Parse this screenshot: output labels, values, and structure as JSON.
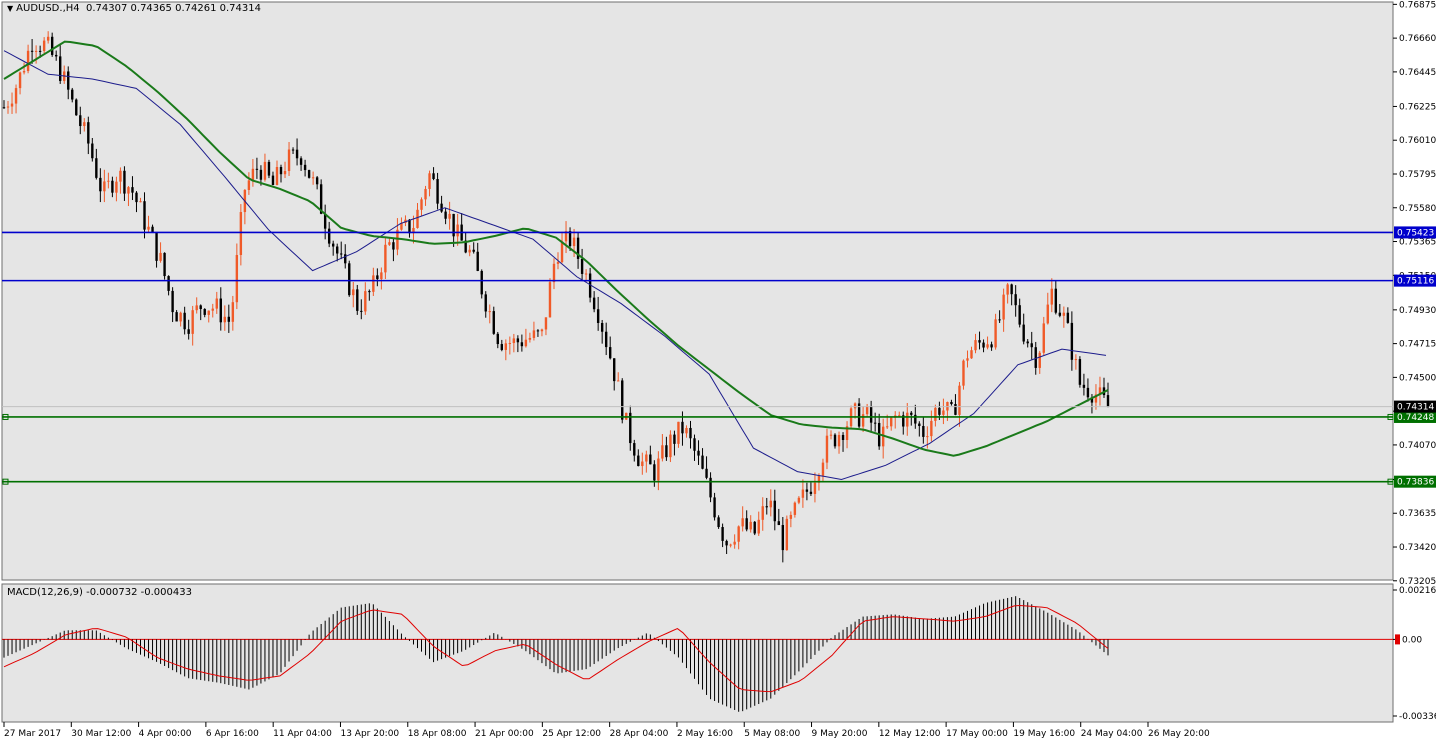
{
  "header": {
    "symbol": "AUDUSD.,H4",
    "open": "0.74307",
    "high": "0.74365",
    "low": "0.74261",
    "close": "0.74314"
  },
  "macd_header": {
    "name": "MACD(12,26,9)",
    "main": "-0.000732",
    "signal": "-0.000433"
  },
  "colors": {
    "background": "#ffffff",
    "plot_bg": "#e5e5e5",
    "bull_candle": "#f05a28",
    "bear_candle": "#000000",
    "ma_slow": "#1a7a1a",
    "ma_fast": "#1c1c8c",
    "resistance_line": "#0000cc",
    "support_line": "#007000",
    "macd_hist": "#000000",
    "macd_signal": "#e00000"
  },
  "chart_data": {
    "type": "candlestick",
    "instrument": "AUDUSD",
    "timeframe": "H4",
    "price_range": [
      0.7321,
      0.7689
    ],
    "price_ticks": [
      "0.76875",
      "0.76660",
      "0.76445",
      "0.76225",
      "0.76010",
      "0.75795",
      "0.75580",
      "0.75365",
      "0.75150",
      "0.74930",
      "0.74715",
      "0.74500",
      "0.74285",
      "0.74070",
      "0.73850",
      "0.73635",
      "0.73420",
      "0.73205"
    ],
    "time_labels": [
      "27 Mar 2017",
      "30 Mar 12:00",
      "4 Apr 00:00",
      "6 Apr 16:00",
      "11 Apr 04:00",
      "13 Apr 20:00",
      "18 Apr 08:00",
      "21 Apr 00:00",
      "25 Apr 12:00",
      "28 Apr 04:00",
      "2 May 16:00",
      "5 May 08:00",
      "9 May 20:00",
      "12 May 12:00",
      "17 May 00:00",
      "19 May 16:00",
      "24 May 04:00",
      "26 May 20:00"
    ],
    "horizontal_lines": [
      {
        "price": 0.75423,
        "label": "0.75423",
        "color": "#0000cc",
        "type": "resistance"
      },
      {
        "price": 0.75116,
        "label": "0.75116",
        "color": "#0000cc",
        "type": "resistance"
      },
      {
        "price": 0.74248,
        "label": "0.74248",
        "color": "#007000",
        "type": "support"
      },
      {
        "price": 0.73836,
        "label": "0.73836",
        "color": "#007000",
        "type": "support"
      }
    ],
    "current_price": {
      "price": 0.74314,
      "label": "0.74314"
    },
    "close_series": [
      0.7622,
      0.7638,
      0.7665,
      0.7661,
      0.7645,
      0.762,
      0.7598,
      0.7566,
      0.758,
      0.757,
      0.7548,
      0.7526,
      0.7493,
      0.7485,
      0.7497,
      0.7494,
      0.7485,
      0.757,
      0.7585,
      0.7572,
      0.7588,
      0.7592,
      0.757,
      0.7542,
      0.7518,
      0.7495,
      0.7505,
      0.7532,
      0.7542,
      0.7548,
      0.758,
      0.7562,
      0.754,
      0.7528,
      0.75,
      0.7474,
      0.7472,
      0.7475,
      0.7476,
      0.753,
      0.7538,
      0.7518,
      0.7492,
      0.7458,
      0.7418,
      0.7396,
      0.739,
      0.7408,
      0.7418,
      0.7398,
      0.7372,
      0.7345,
      0.7356,
      0.735,
      0.7372,
      0.7346,
      0.7366,
      0.7382,
      0.7405,
      0.7415,
      0.7426,
      0.7425,
      0.741,
      0.7425,
      0.7424,
      0.7415,
      0.7432,
      0.7425,
      0.7465,
      0.7472,
      0.7478,
      0.7505,
      0.748,
      0.7462,
      0.7505,
      0.7485,
      0.7446,
      0.7441,
      0.7431
    ],
    "ma_slow": {
      "period": "",
      "values": [
        0.764,
        0.7652,
        0.7664,
        0.7661,
        0.7648,
        0.7632,
        0.7614,
        0.7594,
        0.7576,
        0.757,
        0.7562,
        0.7545,
        0.754,
        0.7538,
        0.7535,
        0.7536,
        0.754,
        0.7545,
        0.7539,
        0.7524,
        0.7505,
        0.7487,
        0.747,
        0.7455,
        0.744,
        0.7426,
        0.742,
        0.7418,
        0.7417,
        0.7411,
        0.7404,
        0.74,
        0.7406,
        0.7414,
        0.7422,
        0.7432,
        0.7442
      ]
    },
    "ma_fast": {
      "period": "",
      "values": [
        0.7658,
        0.7643,
        0.764,
        0.7634,
        0.7611,
        0.7578,
        0.7544,
        0.7518,
        0.753,
        0.7548,
        0.7558,
        0.7548,
        0.7538,
        0.7514,
        0.7497,
        0.7476,
        0.7452,
        0.7405,
        0.739,
        0.7385,
        0.7394,
        0.7408,
        0.7427,
        0.7458,
        0.7468,
        0.7464
      ]
    },
    "macd": {
      "name": "MACD(12,26,9)",
      "main": -0.000732,
      "signal": -0.000433,
      "range": [
        -0.00336,
        0.002167
      ],
      "ticks": [
        "0.002167",
        "0.00",
        "-0.00336"
      ],
      "histogram_keyframes": [
        -0.0008,
        -0.0002,
        0.0004,
        0.0004,
        -0.0004,
        -0.001,
        -0.0017,
        -0.0019,
        -0.0022,
        -0.0015,
        0.0003,
        0.0014,
        0.0016,
        0.0002,
        -0.001,
        -0.0005,
        0.0003,
        -0.0005,
        -0.0015,
        -0.0013,
        -0.0004,
        0.0003,
        -0.0008,
        -0.0026,
        -0.0032,
        -0.0026,
        -0.0013,
        0.0001,
        0.001,
        0.0011,
        0.0009,
        0.001,
        0.0016,
        0.0019,
        0.0012,
        0.0004,
        -0.0007
      ],
      "signal_keyframes": [
        -0.0012,
        -0.0006,
        0.0002,
        0.0005,
        0.0001,
        -0.0008,
        -0.0013,
        -0.0016,
        -0.0018,
        -0.0016,
        -0.0006,
        0.0008,
        0.0013,
        0.0011,
        -0.0003,
        -0.0012,
        -0.0005,
        -0.0002,
        -0.0011,
        -0.0018,
        -0.0009,
        -0.0001,
        0.0005,
        -0.001,
        -0.0022,
        -0.0023,
        -0.0018,
        -0.0007,
        0.0008,
        0.001,
        0.0009,
        0.0008,
        0.001,
        0.0015,
        0.0014,
        0.0007,
        -0.0004
      ]
    }
  }
}
